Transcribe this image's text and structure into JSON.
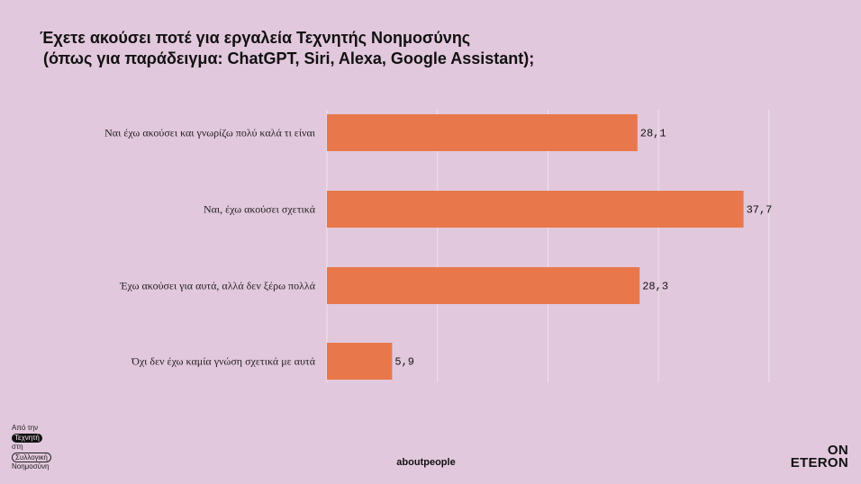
{
  "title_line1": "Έχετε ακούσει ποτέ για εργαλεία Τεχνητής Νοημοσύνης",
  "title_line2": "(όπως για παράδειγμα: ChatGPT, Siri, Alexa, Google Assistant);",
  "chart_data": {
    "type": "bar",
    "orientation": "horizontal",
    "categories": [
      "Ναι έχω ακούσει και γνωρίζω πολύ καλά τι είναι",
      "Ναι, έχω ακούσει σχετικά",
      "Έχω ακούσει για αυτά, αλλά δεν ξέρω πολλά",
      "Όχι δεν έχω καμία γνώση σχετικά με αυτά"
    ],
    "values": [
      28.1,
      37.7,
      28.3,
      5.9
    ],
    "value_labels": [
      "28,1",
      "37,7",
      "28,3",
      "5,9"
    ],
    "xlim": [
      0,
      40
    ],
    "grid": true,
    "bar_color": "#e8784b",
    "grid_color": "#f0e2ec"
  },
  "footer": {
    "left_line1": "Από την",
    "left_line2": "Τεχνητή",
    "left_line3": "στη",
    "left_line4": "Συλλογική",
    "left_line5": "Νοημοσύνη",
    "center": "aboutpeople",
    "right_line1": "ON",
    "right_line2": "ETERON"
  }
}
